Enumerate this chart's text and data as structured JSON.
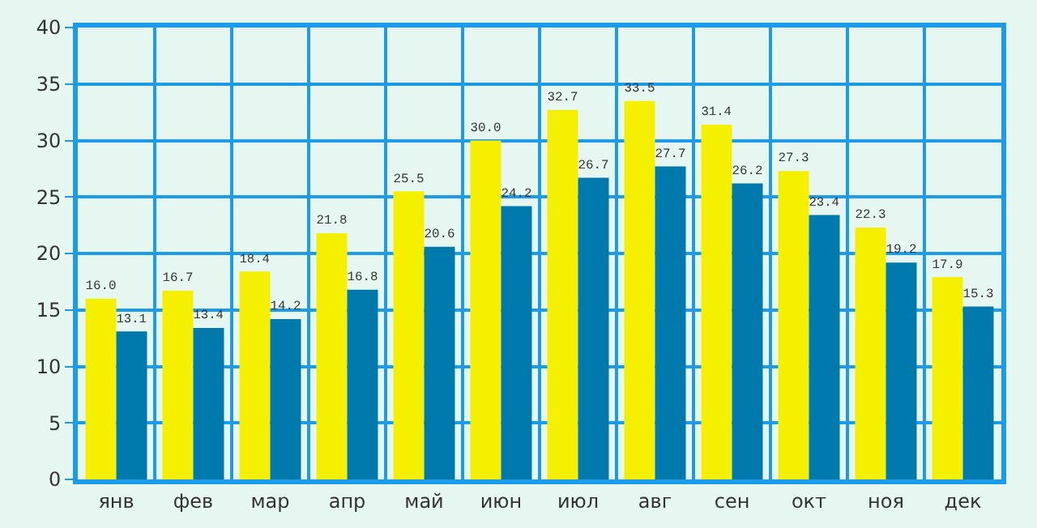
{
  "chart_data": {
    "type": "bar",
    "categories": [
      "янв",
      "фев",
      "мар",
      "апр",
      "май",
      "июн",
      "июл",
      "авг",
      "сен",
      "окт",
      "ноя",
      "дек"
    ],
    "series": [
      {
        "color": "#f5ef00",
        "values": [
          16.0,
          16.7,
          18.4,
          21.8,
          25.5,
          30.0,
          32.7,
          33.5,
          31.4,
          27.3,
          22.3,
          17.9
        ],
        "value_labels": [
          "16.0",
          "16.7",
          "18.4",
          "21.8",
          "25.5",
          "30.0",
          "32.7",
          "33.5",
          "31.4",
          "27.3",
          "22.3",
          "17.9"
        ]
      },
      {
        "color": "#0079ad",
        "values": [
          13.1,
          13.4,
          14.2,
          16.8,
          20.6,
          24.2,
          26.7,
          27.7,
          26.2,
          23.4,
          19.2,
          15.3
        ],
        "value_labels": [
          "13.1",
          "13.4",
          "14.2",
          "16.8",
          "20.6",
          "24.2",
          "26.7",
          "27.7",
          "26.2",
          "23.4",
          "19.2",
          "15.3"
        ]
      }
    ],
    "ylim": [
      0,
      40
    ],
    "yticks": [
      0,
      5,
      10,
      15,
      20,
      25,
      30,
      35,
      40
    ],
    "grid": true
  }
}
